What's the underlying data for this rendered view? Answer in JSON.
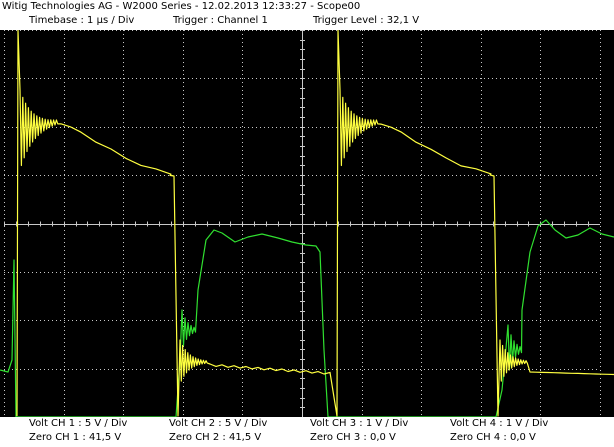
{
  "header": {
    "title": "Witig Technologies AG - W2000 Series  -  12.02.2013 12:33:27 - Scope00",
    "timebase": "Timebase : 1 µs / Div",
    "trigger": "Trigger : Channel 1",
    "trigger_level": "Trigger Level : 32,1 V"
  },
  "channels": [
    {
      "volt": "Volt CH 1 : 5 V / Div",
      "zero": "Zero CH 1 : 41,5 V"
    },
    {
      "volt": "Volt CH 2 : 5 V / Div",
      "zero": "Zero CH 2 : 41,5 V"
    },
    {
      "volt": "Volt CH 3 : 1 V / Div",
      "zero": "Zero CH 3 : 0,0 V"
    },
    {
      "volt": "Volt CH 4 : 1 V / Div",
      "zero": "Zero CH 4 : 0,0 V"
    }
  ],
  "colors": {
    "background": "#000000",
    "grid": "#c8c8c8",
    "channel_1": "#ffff40",
    "channel_2": "#30e030"
  }
}
